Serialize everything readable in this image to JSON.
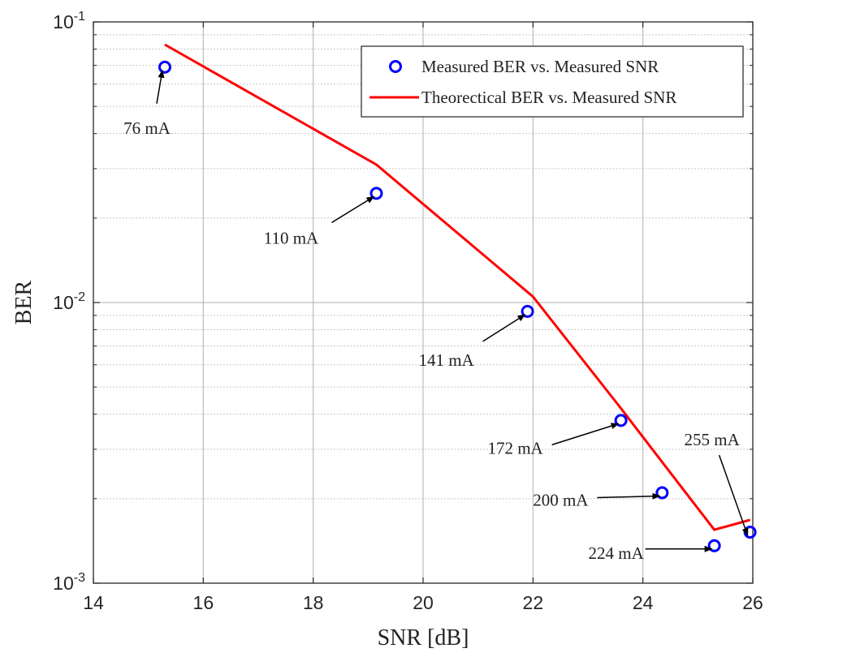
{
  "chart_data": {
    "type": "scatter",
    "xlabel": "SNR [dB]",
    "ylabel": "BER",
    "xlim": [
      14,
      26
    ],
    "ylim": [
      0.001,
      0.1
    ],
    "yscale": "log",
    "grid": true,
    "legend_position": "top-right",
    "x_ticks": [
      14,
      16,
      18,
      20,
      22,
      24,
      26
    ],
    "x_tick_labels": [
      "14",
      "16",
      "18",
      "20",
      "22",
      "24",
      "26"
    ],
    "y_ticks": [
      {
        "value": 0.001,
        "base": "10",
        "exp": "-3"
      },
      {
        "value": 0.01,
        "base": "10",
        "exp": "-2"
      },
      {
        "value": 0.1,
        "base": "10",
        "exp": "-1"
      }
    ],
    "series": [
      {
        "name": "Measured BER vs. Measured SNR",
        "kind": "scatter",
        "color": "#0000ff",
        "x": [
          15.3,
          19.15,
          21.9,
          23.6,
          24.35,
          25.3,
          25.95
        ],
        "y": [
          0.069,
          0.0245,
          0.0093,
          0.0038,
          0.0021,
          0.00136,
          0.00152
        ]
      },
      {
        "name": "Theorectical BER vs. Measured SNR",
        "kind": "line",
        "color": "#ff0000",
        "x": [
          15.3,
          19.15,
          22.0,
          23.6,
          24.35,
          25.3,
          25.95
        ],
        "y": [
          0.083,
          0.031,
          0.0105,
          0.0042,
          0.0027,
          0.00155,
          0.00168
        ]
      }
    ],
    "annotations": [
      {
        "text": "76 mA",
        "x": 15.3,
        "y": 0.069
      },
      {
        "text": "110 mA",
        "x": 19.15,
        "y": 0.0245
      },
      {
        "text": "141 mA",
        "x": 21.9,
        "y": 0.0093
      },
      {
        "text": "172 mA",
        "x": 23.6,
        "y": 0.0038
      },
      {
        "text": "200 mA",
        "x": 24.35,
        "y": 0.0021
      },
      {
        "text": "224 mA",
        "x": 25.3,
        "y": 0.00136
      },
      {
        "text": "255 mA",
        "x": 25.95,
        "y": 0.00152
      }
    ]
  }
}
